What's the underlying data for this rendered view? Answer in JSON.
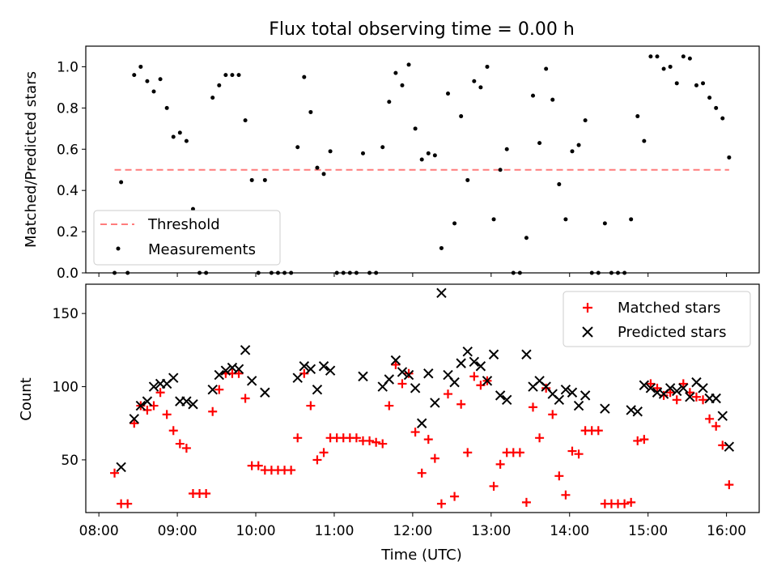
{
  "figure": {
    "title": "Flux total observing time = 0.00 h",
    "xlabel": "Time (UTC)",
    "xtick_labels": [
      "08:00",
      "09:00",
      "10:00",
      "11:00",
      "12:00",
      "13:00",
      "14:00",
      "15:00",
      "16:00"
    ]
  },
  "chart_data": [
    {
      "type": "scatter",
      "ylabel": "Matched/Predicted stars",
      "xlim": [
        "07:50",
        "16:25"
      ],
      "ylim": [
        0,
        1.1
      ],
      "yticks": [
        "0.0",
        "0.2",
        "0.4",
        "0.6",
        "0.8",
        "1.0"
      ],
      "legend_position": "lower-left",
      "threshold": {
        "name": "Threshold",
        "value": 0.5,
        "x_start": "08:12",
        "x_end": "16:02",
        "color": "#ff6666",
        "style": "dashed"
      },
      "series": [
        {
          "name": "Measurements",
          "color": "#000000",
          "marker": "dot",
          "points": [
            [
              "08:12",
              0.0
            ],
            [
              "08:17",
              0.44
            ],
            [
              "08:22",
              0.0
            ],
            [
              "08:27",
              0.96
            ],
            [
              "08:32",
              1.0
            ],
            [
              "08:37",
              0.93
            ],
            [
              "08:42",
              0.88
            ],
            [
              "08:47",
              0.94
            ],
            [
              "08:52",
              0.8
            ],
            [
              "08:57",
              0.66
            ],
            [
              "09:02",
              0.68
            ],
            [
              "09:07",
              0.64
            ],
            [
              "09:12",
              0.31
            ],
            [
              "09:17",
              0.0
            ],
            [
              "09:22",
              0.0
            ],
            [
              "09:27",
              0.85
            ],
            [
              "09:32",
              0.91
            ],
            [
              "09:37",
              0.96
            ],
            [
              "09:42",
              0.96
            ],
            [
              "09:47",
              0.96
            ],
            [
              "09:52",
              0.74
            ],
            [
              "09:57",
              0.45
            ],
            [
              "10:02",
              0.0
            ],
            [
              "10:07",
              0.45
            ],
            [
              "10:12",
              0.0
            ],
            [
              "10:17",
              0.0
            ],
            [
              "10:22",
              0.0
            ],
            [
              "10:27",
              0.0
            ],
            [
              "10:32",
              0.61
            ],
            [
              "10:37",
              0.95
            ],
            [
              "10:42",
              0.78
            ],
            [
              "10:47",
              0.51
            ],
            [
              "10:52",
              0.48
            ],
            [
              "10:57",
              0.59
            ],
            [
              "11:02",
              0.0
            ],
            [
              "11:07",
              0.0
            ],
            [
              "11:12",
              0.0
            ],
            [
              "11:17",
              0.0
            ],
            [
              "11:22",
              0.58
            ],
            [
              "11:27",
              0.0
            ],
            [
              "11:32",
              0.0
            ],
            [
              "11:37",
              0.61
            ],
            [
              "11:42",
              0.83
            ],
            [
              "11:47",
              0.97
            ],
            [
              "11:52",
              0.91
            ],
            [
              "11:57",
              1.01
            ],
            [
              "12:02",
              0.7
            ],
            [
              "12:07",
              0.55
            ],
            [
              "12:12",
              0.58
            ],
            [
              "12:17",
              0.57
            ],
            [
              "12:22",
              0.12
            ],
            [
              "12:27",
              0.87
            ],
            [
              "12:32",
              0.24
            ],
            [
              "12:37",
              0.76
            ],
            [
              "12:42",
              0.45
            ],
            [
              "12:47",
              0.93
            ],
            [
              "12:52",
              0.9
            ],
            [
              "12:57",
              1.0
            ],
            [
              "13:02",
              0.26
            ],
            [
              "13:07",
              0.5
            ],
            [
              "13:12",
              0.6
            ],
            [
              "13:17",
              0.0
            ],
            [
              "13:22",
              0.0
            ],
            [
              "13:27",
              0.17
            ],
            [
              "13:32",
              0.86
            ],
            [
              "13:37",
              0.63
            ],
            [
              "13:42",
              0.99
            ],
            [
              "13:47",
              0.84
            ],
            [
              "13:52",
              0.43
            ],
            [
              "13:57",
              0.26
            ],
            [
              "14:02",
              0.59
            ],
            [
              "14:07",
              0.62
            ],
            [
              "14:12",
              0.74
            ],
            [
              "14:17",
              0.0
            ],
            [
              "14:22",
              0.0
            ],
            [
              "14:27",
              0.24
            ],
            [
              "14:32",
              0.0
            ],
            [
              "14:37",
              0.0
            ],
            [
              "14:42",
              0.0
            ],
            [
              "14:47",
              0.26
            ],
            [
              "14:52",
              0.76
            ],
            [
              "14:57",
              0.64
            ],
            [
              "15:02",
              1.05
            ],
            [
              "15:07",
              1.05
            ],
            [
              "15:12",
              0.99
            ],
            [
              "15:17",
              1.0
            ],
            [
              "15:22",
              0.92
            ],
            [
              "15:27",
              1.05
            ],
            [
              "15:32",
              1.04
            ],
            [
              "15:37",
              0.91
            ],
            [
              "15:42",
              0.92
            ],
            [
              "15:47",
              0.85
            ],
            [
              "15:52",
              0.8
            ],
            [
              "15:57",
              0.75
            ],
            [
              "16:02",
              0.56
            ]
          ]
        }
      ]
    },
    {
      "type": "scatter",
      "ylabel": "Count",
      "xlim": [
        "07:50",
        "16:25"
      ],
      "ylim": [
        14,
        170
      ],
      "yticks": [
        "50",
        "100",
        "150"
      ],
      "legend_position": "upper-right",
      "series": [
        {
          "name": "Matched stars",
          "color": "#ff0000",
          "marker": "plus",
          "points": [
            [
              "08:12",
              41
            ],
            [
              "08:17",
              20
            ],
            [
              "08:22",
              20
            ],
            [
              "08:27",
              75
            ],
            [
              "08:32",
              87
            ],
            [
              "08:37",
              84
            ],
            [
              "08:42",
              87
            ],
            [
              "08:47",
              96
            ],
            [
              "08:52",
              81
            ],
            [
              "08:57",
              70
            ],
            [
              "09:02",
              61
            ],
            [
              "09:07",
              58
            ],
            [
              "09:12",
              27
            ],
            [
              "09:17",
              27
            ],
            [
              "09:22",
              27
            ],
            [
              "09:27",
              83
            ],
            [
              "09:32",
              98
            ],
            [
              "09:37",
              109
            ],
            [
              "09:42",
              109
            ],
            [
              "09:47",
              109
            ],
            [
              "09:52",
              92
            ],
            [
              "09:57",
              46
            ],
            [
              "10:02",
              46
            ],
            [
              "10:07",
              43
            ],
            [
              "10:12",
              43
            ],
            [
              "10:17",
              43
            ],
            [
              "10:22",
              43
            ],
            [
              "10:27",
              43
            ],
            [
              "10:32",
              65
            ],
            [
              "10:37",
              109
            ],
            [
              "10:42",
              87
            ],
            [
              "10:47",
              50
            ],
            [
              "10:52",
              55
            ],
            [
              "10:57",
              65
            ],
            [
              "11:02",
              65
            ],
            [
              "11:07",
              65
            ],
            [
              "11:12",
              65
            ],
            [
              "11:17",
              65
            ],
            [
              "11:22",
              63
            ],
            [
              "11:27",
              63
            ],
            [
              "11:32",
              62
            ],
            [
              "11:37",
              61
            ],
            [
              "11:42",
              87
            ],
            [
              "11:47",
              115
            ],
            [
              "11:52",
              102
            ],
            [
              "11:57",
              109
            ],
            [
              "12:02",
              69
            ],
            [
              "12:07",
              41
            ],
            [
              "12:12",
              64
            ],
            [
              "12:17",
              51
            ],
            [
              "12:22",
              20
            ],
            [
              "12:27",
              95
            ],
            [
              "12:32",
              25
            ],
            [
              "12:37",
              88
            ],
            [
              "12:42",
              55
            ],
            [
              "12:47",
              107
            ],
            [
              "12:52",
              101
            ],
            [
              "12:57",
              104
            ],
            [
              "13:02",
              32
            ],
            [
              "13:07",
              47
            ],
            [
              "13:12",
              55
            ],
            [
              "13:17",
              55
            ],
            [
              "13:22",
              55
            ],
            [
              "13:27",
              21
            ],
            [
              "13:32",
              86
            ],
            [
              "13:37",
              65
            ],
            [
              "13:42",
              99
            ],
            [
              "13:47",
              81
            ],
            [
              "13:52",
              39
            ],
            [
              "13:57",
              26
            ],
            [
              "14:02",
              56
            ],
            [
              "14:07",
              54
            ],
            [
              "14:12",
              70
            ],
            [
              "14:17",
              70
            ],
            [
              "14:22",
              70
            ],
            [
              "14:27",
              20
            ],
            [
              "14:32",
              20
            ],
            [
              "14:37",
              20
            ],
            [
              "14:42",
              20
            ],
            [
              "14:47",
              21
            ],
            [
              "14:52",
              63
            ],
            [
              "14:57",
              64
            ],
            [
              "15:02",
              102
            ],
            [
              "15:07",
              99
            ],
            [
              "15:12",
              94
            ],
            [
              "15:17",
              96
            ],
            [
              "15:22",
              91
            ],
            [
              "15:27",
              102
            ],
            [
              "15:32",
              96
            ],
            [
              "15:37",
              93
            ],
            [
              "15:42",
              91
            ],
            [
              "15:47",
              78
            ],
            [
              "15:52",
              73
            ],
            [
              "15:57",
              60
            ],
            [
              "16:02",
              33
            ]
          ]
        },
        {
          "name": "Predicted stars",
          "color": "#000000",
          "marker": "x",
          "points": [
            [
              "08:17",
              45
            ],
            [
              "08:27",
              78
            ],
            [
              "08:32",
              87
            ],
            [
              "08:37",
              90
            ],
            [
              "08:42",
              100
            ],
            [
              "08:47",
              102
            ],
            [
              "08:52",
              102
            ],
            [
              "08:57",
              106
            ],
            [
              "09:02",
              90
            ],
            [
              "09:07",
              90
            ],
            [
              "09:12",
              88
            ],
            [
              "09:27",
              98
            ],
            [
              "09:32",
              108
            ],
            [
              "09:37",
              111
            ],
            [
              "09:42",
              113
            ],
            [
              "09:47",
              112
            ],
            [
              "09:52",
              125
            ],
            [
              "09:57",
              104
            ],
            [
              "10:07",
              96
            ],
            [
              "10:32",
              106
            ],
            [
              "10:37",
              114
            ],
            [
              "10:42",
              112
            ],
            [
              "10:47",
              98
            ],
            [
              "10:52",
              114
            ],
            [
              "10:57",
              111
            ],
            [
              "11:22",
              107
            ],
            [
              "11:37",
              100
            ],
            [
              "11:42",
              105
            ],
            [
              "11:47",
              118
            ],
            [
              "11:52",
              110
            ],
            [
              "11:57",
              108
            ],
            [
              "12:02",
              99
            ],
            [
              "12:07",
              75
            ],
            [
              "12:12",
              109
            ],
            [
              "12:17",
              89
            ],
            [
              "12:22",
              164
            ],
            [
              "12:27",
              108
            ],
            [
              "12:32",
              103
            ],
            [
              "12:37",
              116
            ],
            [
              "12:42",
              124
            ],
            [
              "12:47",
              117
            ],
            [
              "12:52",
              114
            ],
            [
              "12:57",
              104
            ],
            [
              "13:02",
              122
            ],
            [
              "13:07",
              94
            ],
            [
              "13:12",
              91
            ],
            [
              "13:27",
              122
            ],
            [
              "13:32",
              100
            ],
            [
              "13:37",
              104
            ],
            [
              "13:42",
              100
            ],
            [
              "13:47",
              95
            ],
            [
              "13:52",
              91
            ],
            [
              "13:57",
              98
            ],
            [
              "14:02",
              96
            ],
            [
              "14:07",
              87
            ],
            [
              "14:12",
              94
            ],
            [
              "14:27",
              85
            ],
            [
              "14:47",
              84
            ],
            [
              "14:52",
              83
            ],
            [
              "14:57",
              101
            ],
            [
              "15:02",
              99
            ],
            [
              "15:07",
              96
            ],
            [
              "15:12",
              95
            ],
            [
              "15:17",
              99
            ],
            [
              "15:22",
              97
            ],
            [
              "15:27",
              99
            ],
            [
              "15:32",
              93
            ],
            [
              "15:37",
              103
            ],
            [
              "15:42",
              99
            ],
            [
              "15:47",
              92
            ],
            [
              "15:52",
              92
            ],
            [
              "15:57",
              80
            ],
            [
              "16:02",
              59
            ]
          ]
        }
      ]
    }
  ]
}
